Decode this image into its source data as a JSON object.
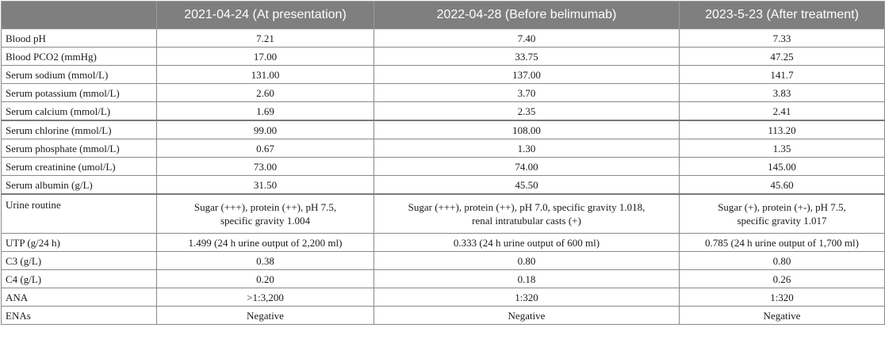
{
  "columns": [
    "",
    "2021-04-24 (At presentation)",
    "2022-04-28 (Before belimumab)",
    "2023-5-23 (After treatment)"
  ],
  "rows": [
    {
      "label": "Blood pH",
      "values": [
        "7.21",
        "7.40",
        "7.33"
      ]
    },
    {
      "label": "Blood PCO2 (mmHg)",
      "values": [
        "17.00",
        "33.75",
        "47.25"
      ]
    },
    {
      "label": "Serum sodium (mmol/L)",
      "values": [
        "131.00",
        "137.00",
        "141.7"
      ]
    },
    {
      "label": "Serum potassium (mmol/L)",
      "values": [
        "2.60",
        "3.70",
        "3.83"
      ]
    },
    {
      "label": "Serum calcium (mmol/L)",
      "values": [
        "1.69",
        "2.35",
        "2.41"
      ]
    },
    {
      "label": "Serum chlorine (mmol/L)",
      "values": [
        "99.00",
        "108.00",
        "113.20"
      ]
    },
    {
      "label": "Serum phosphate (mmol/L)",
      "values": [
        "0.67",
        "1.30",
        "1.35"
      ]
    },
    {
      "label": "Serum creatinine (umol/L)",
      "values": [
        "73.00",
        "74.00",
        "145.00"
      ]
    },
    {
      "label": "Serum albumin (g/L)",
      "values": [
        "31.50",
        "45.50",
        "45.60"
      ]
    },
    {
      "label": "Urine routine",
      "values": [
        [
          "Sugar (+++), protein (++), pH 7.5,",
          "specific gravity 1.004"
        ],
        [
          "Sugar (+++), protein (++), pH 7.0, specific gravity 1.018,",
          "renal intratubular casts (+)"
        ],
        [
          "Sugar (+), protein (+-), pH 7.5,",
          "specific gravity 1.017"
        ]
      ]
    },
    {
      "label": "UTP (g/24 h)",
      "values": [
        "1.499 (24 h urine output of 2,200 ml)",
        "0.333 (24 h urine output of 600 ml)",
        "0.785 (24 h urine output of 1,700 ml)"
      ]
    },
    {
      "label": "C3 (g/L)",
      "values": [
        "0.38",
        "0.80",
        "0.80"
      ]
    },
    {
      "label": "C4 (g/L)",
      "values": [
        "0.20",
        "0.18",
        "0.26"
      ]
    },
    {
      "label": "ANA",
      "values": [
        ">1:3,200",
        "1:320",
        "1:320"
      ]
    },
    {
      "label": "ENAs",
      "values": [
        "Negative",
        "Negative",
        "Negative"
      ]
    }
  ]
}
